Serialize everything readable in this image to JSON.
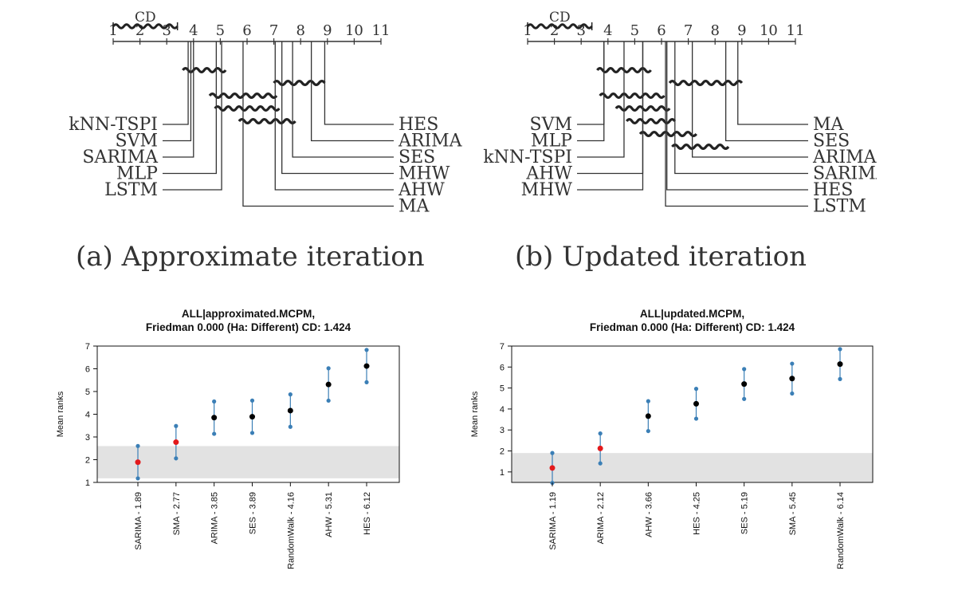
{
  "cd_diagrams": [
    {
      "cd_label": "CD",
      "axis_ticks": [
        "1",
        "2",
        "3",
        "4",
        "5",
        "6",
        "7",
        "8",
        "9",
        "10",
        "11"
      ],
      "caption": "(a) Approximate iteration",
      "cd_value": 2.4,
      "left_methods": [
        {
          "label": "kNN-TSPI",
          "rank": 3.8
        },
        {
          "label": "SVM",
          "rank": 3.9
        },
        {
          "label": "SARIMA",
          "rank": 4.0
        },
        {
          "label": "MLP",
          "rank": 4.85
        },
        {
          "label": "LSTM",
          "rank": 5.05
        }
      ],
      "right_methods": [
        {
          "label": "HES",
          "rank": 8.9
        },
        {
          "label": "ARIMA",
          "rank": 8.4
        },
        {
          "label": "SES",
          "rank": 7.7
        },
        {
          "label": "MHW",
          "rank": 7.3
        },
        {
          "label": "AHW",
          "rank": 7.05
        },
        {
          "label": "MA",
          "rank": 5.85
        }
      ],
      "cliques": [
        [
          3.6,
          5.2
        ],
        [
          7.0,
          8.9
        ],
        [
          4.6,
          7.1
        ],
        [
          4.8,
          7.2
        ],
        [
          5.7,
          7.8
        ]
      ]
    },
    {
      "cd_label": "CD",
      "axis_ticks": [
        "1",
        "2",
        "3",
        "4",
        "5",
        "6",
        "7",
        "8",
        "9",
        "10",
        "11"
      ],
      "caption": "(b) Updated iteration",
      "cd_value": 2.4,
      "left_methods": [
        {
          "label": "SVM",
          "rank": 3.85
        },
        {
          "label": "MLP",
          "rank": 3.85
        },
        {
          "label": "kNN-TSPI",
          "rank": 4.6
        },
        {
          "label": "AHW",
          "rank": 5.3
        },
        {
          "label": "MHW",
          "rank": 5.3
        }
      ],
      "right_methods": [
        {
          "label": "MA",
          "rank": 8.85
        },
        {
          "label": "SES",
          "rank": 8.4
        },
        {
          "label": "ARIMA",
          "rank": 7.15
        },
        {
          "label": "SARIMA",
          "rank": 6.5
        },
        {
          "label": "HES",
          "rank": 6.2
        },
        {
          "label": "LSTM",
          "rank": 6.15
        }
      ],
      "cliques": [
        [
          3.6,
          5.6
        ],
        [
          6.3,
          9.0
        ],
        [
          3.7,
          6.1
        ],
        [
          4.3,
          6.3
        ],
        [
          4.7,
          6.5
        ],
        [
          5.2,
          7.3
        ],
        [
          6.4,
          8.5
        ]
      ]
    }
  ],
  "chart_data": [
    {
      "type": "scatter",
      "title": "ALL|approximated.MCPM,",
      "subtitle": "Friedman 0.000 (Ha: Different) CD: 1.424",
      "ylabel": "Mean ranks",
      "ylim": [
        1,
        7
      ],
      "yticks": [
        "1",
        "2",
        "3",
        "4",
        "5",
        "6",
        "7"
      ],
      "categories": [
        "SARIMA - 1.89",
        "SMA - 2.77",
        "ARIMA - 3.85",
        "SES - 3.89",
        "RandomWalk - 4.16",
        "AHW - 5.31",
        "HES - 6.12"
      ],
      "values": [
        1.89,
        2.77,
        3.85,
        3.89,
        4.16,
        5.31,
        6.12
      ],
      "cd_half": 0.712,
      "highlight": [
        true,
        true,
        false,
        false,
        false,
        false,
        false
      ],
      "band": [
        1.18,
        2.6
      ],
      "colors": {
        "best": "#e31a1c",
        "other": "#000000",
        "interval": "#3b7fb6",
        "band": "#e2e2e2"
      }
    },
    {
      "type": "scatter",
      "title": "ALL|updated.MCPM,",
      "subtitle": "Friedman 0.000 (Ha: Different) CD: 1.424",
      "ylabel": "Mean ranks",
      "ylim": [
        0.5,
        7
      ],
      "yticks": [
        "1",
        "2",
        "3",
        "4",
        "5",
        "6",
        "7"
      ],
      "categories": [
        "SARIMA - 1.19",
        "ARIMA - 2.12",
        "AHW - 3.66",
        "HES - 4.25",
        "SES - 5.19",
        "SMA - 5.45",
        "RandomWalk - 6.14"
      ],
      "values": [
        1.19,
        2.12,
        3.66,
        4.25,
        5.19,
        5.45,
        6.14
      ],
      "cd_half": 0.712,
      "highlight": [
        true,
        true,
        false,
        false,
        false,
        false,
        false
      ],
      "band": [
        0.48,
        1.9
      ],
      "colors": {
        "best": "#e31a1c",
        "other": "#000000",
        "interval": "#3b7fb6",
        "band": "#e2e2e2"
      }
    }
  ]
}
